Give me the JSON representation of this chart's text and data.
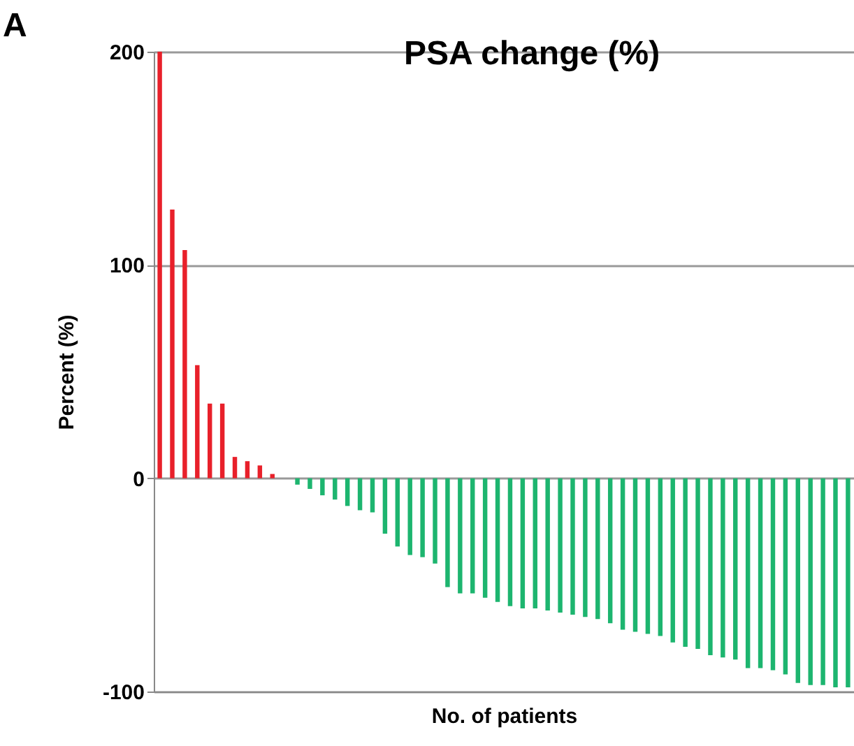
{
  "chart_data": {
    "type": "bar",
    "title": "PSA change (%)",
    "xlabel": "No. of patients",
    "ylabel": "Percent (%)",
    "annotations": [
      "A"
    ],
    "categories": [
      null,
      null,
      null,
      null,
      null,
      null,
      null,
      null,
      null,
      null,
      null,
      null,
      null,
      null,
      null,
      null,
      null,
      null,
      null,
      null,
      null,
      null,
      null,
      null,
      null,
      null,
      null,
      null,
      null,
      null,
      null,
      null,
      null,
      null,
      null,
      null,
      null,
      null,
      null,
      null,
      null,
      null,
      null,
      null,
      null,
      null,
      null,
      null,
      null,
      null,
      null,
      null,
      null,
      null,
      null,
      null
    ],
    "values": [
      200,
      126,
      107,
      53,
      35,
      35,
      10,
      8,
      6,
      2,
      0,
      -3,
      -5,
      -8,
      -10,
      -13,
      -15,
      -16,
      -26,
      -32,
      -36,
      -37,
      -40,
      -51,
      -54,
      -54,
      -56,
      -58,
      -60,
      -61,
      -61,
      -62,
      -63,
      -64,
      -65,
      -66,
      -68,
      -71,
      -72,
      -73,
      -74,
      -77,
      -79,
      -80,
      -83,
      -84,
      -85,
      -89,
      -89,
      -90,
      -92,
      -96,
      -97,
      -97,
      -98,
      -98
    ],
    "colors": [
      "#e8202a",
      "#e8202a",
      "#e8202a",
      "#e8202a",
      "#e8202a",
      "#e8202a",
      "#e8202a",
      "#e8202a",
      "#e8202a",
      "#e8202a",
      "#e8202a",
      "#1db56f",
      "#1db56f",
      "#1db56f",
      "#1db56f",
      "#1db56f",
      "#1db56f",
      "#1db56f",
      "#1db56f",
      "#1db56f",
      "#1db56f",
      "#1db56f",
      "#1db56f",
      "#1db56f",
      "#1db56f",
      "#1db56f",
      "#1db56f",
      "#1db56f",
      "#1db56f",
      "#1db56f",
      "#1db56f",
      "#1db56f",
      "#1db56f",
      "#1db56f",
      "#1db56f",
      "#1db56f",
      "#1db56f",
      "#1db56f",
      "#1db56f",
      "#1db56f",
      "#1db56f",
      "#1db56f",
      "#1db56f",
      "#1db56f",
      "#1db56f",
      "#1db56f",
      "#1db56f",
      "#1db56f",
      "#1db56f",
      "#1db56f",
      "#1db56f",
      "#1db56f",
      "#1db56f",
      "#1db56f",
      "#1db56f",
      "#1db56f"
    ],
    "ylim": [
      -100,
      200
    ],
    "yticks": [
      -100,
      0,
      100,
      200
    ],
    "grid": "y"
  }
}
